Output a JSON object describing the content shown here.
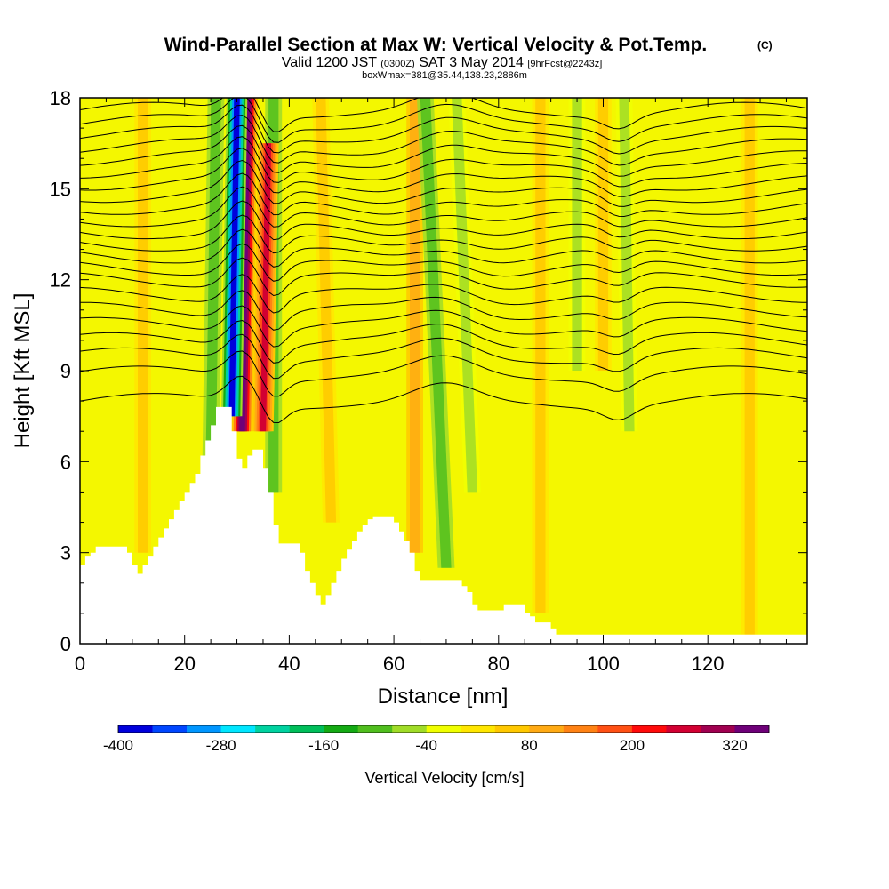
{
  "chart_data": {
    "type": "heatmap",
    "title": "Wind-Parallel Section at Max W: Vertical Velocity & Pot.Temp.",
    "copyright": "(C)",
    "subtitle_valid": "Valid 1200 JST",
    "subtitle_utc": "(0300Z)",
    "subtitle_date": "SAT 3 May 2014",
    "subtitle_fcst": "[9hrFcst@2243z]",
    "subtitle_box": "boxWmax=381@35.44,138.23,2886m",
    "xlabel": "Distance [nm]",
    "ylabel": "Height [Kft MSL]",
    "xlim": [
      0,
      139
    ],
    "ylim": [
      0,
      18
    ],
    "x_ticks": [
      0,
      20,
      40,
      60,
      80,
      100,
      120
    ],
    "y_ticks": [
      0,
      3,
      6,
      9,
      12,
      15,
      18
    ],
    "colorbar": {
      "label": "Vertical Velocity [cm/s]",
      "tick_values": [
        -400,
        -280,
        -160,
        -40,
        80,
        200,
        320
      ],
      "tick_labels": [
        "-400",
        "-280",
        "-160",
        "-40",
        "80",
        "200",
        "320"
      ],
      "bins": [
        -400,
        -360,
        -320,
        -280,
        -240,
        -200,
        -160,
        -120,
        -80,
        -40,
        0,
        40,
        80,
        120,
        160,
        200,
        240,
        280,
        320,
        360
      ],
      "colors": [
        "#0000dc",
        "#0046ff",
        "#0096ff",
        "#00e6ff",
        "#00d2a0",
        "#00be5a",
        "#14aa14",
        "#50be1e",
        "#a0dc28",
        "#f0ff00",
        "#ffe600",
        "#ffc800",
        "#ffaa14",
        "#ff8214",
        "#ff5014",
        "#ff0a0a",
        "#d20032",
        "#a00050",
        "#6e0078"
      ]
    },
    "terrain_profile": {
      "x": [
        0,
        1,
        2,
        3,
        4,
        5,
        6,
        7,
        8,
        9,
        10,
        11,
        12,
        13,
        14,
        15,
        16,
        17,
        18,
        19,
        20,
        21,
        22,
        23,
        24,
        25,
        26,
        27,
        28,
        29,
        30,
        31,
        32,
        33,
        34,
        35,
        36,
        37,
        38,
        39,
        40,
        41,
        42,
        43,
        44,
        45,
        46,
        47,
        48,
        49,
        50,
        51,
        52,
        53,
        54,
        55,
        56,
        57,
        58,
        59,
        60,
        61,
        62,
        63,
        64,
        65,
        66,
        67,
        68,
        69,
        70,
        71,
        72,
        73,
        74,
        75,
        76,
        77,
        78,
        79,
        80,
        81,
        82,
        83,
        84,
        85,
        86,
        87,
        88,
        89,
        90,
        91,
        92,
        93,
        94,
        95,
        139
      ],
      "height": [
        2.6,
        2.9,
        3.0,
        3.2,
        3.2,
        3.2,
        3.2,
        3.2,
        3.2,
        3.0,
        2.6,
        2.3,
        2.6,
        2.9,
        3.2,
        3.5,
        3.8,
        4.1,
        4.4,
        4.7,
        5.0,
        5.3,
        5.6,
        6.2,
        6.7,
        7.2,
        7.8,
        7.8,
        7.8,
        7.0,
        6.1,
        5.8,
        6.2,
        6.4,
        6.4,
        5.8,
        5.0,
        3.9,
        3.3,
        3.3,
        3.3,
        3.3,
        3.0,
        2.4,
        2.0,
        1.6,
        1.3,
        1.6,
        2.0,
        2.4,
        2.8,
        3.1,
        3.4,
        3.7,
        3.9,
        4.1,
        4.2,
        4.2,
        4.2,
        4.2,
        4.0,
        3.7,
        3.4,
        3.0,
        2.4,
        2.1,
        2.1,
        2.1,
        2.1,
        2.1,
        2.1,
        2.1,
        2.1,
        1.9,
        1.7,
        1.3,
        1.1,
        1.1,
        1.1,
        1.1,
        1.1,
        1.3,
        1.3,
        1.3,
        1.3,
        1.0,
        0.9,
        0.7,
        0.7,
        0.7,
        0.5,
        0.3,
        0.3,
        0.3,
        0.3,
        0.3,
        0.3
      ]
    },
    "vertical_velocity_features": [
      {
        "x": 29,
        "x_top": 30,
        "y_bottom": 7.5,
        "y_top": 18,
        "w_cms": -400
      },
      {
        "x": 31,
        "x_top": 32,
        "y_bottom": 7.0,
        "y_top": 18,
        "w_cms": 381
      },
      {
        "x": 35,
        "x_top": 36,
        "y_bottom": 7.0,
        "y_top": 16.5,
        "w_cms": 240
      },
      {
        "x": 25,
        "x_top": 26,
        "y_bottom": 6.0,
        "y_top": 18,
        "w_cms": -100
      },
      {
        "x": 37,
        "x_top": 37,
        "y_bottom": 5.0,
        "y_top": 18,
        "w_cms": -100
      },
      {
        "x": 70,
        "x_top": 66,
        "y_bottom": 2.5,
        "y_top": 18,
        "w_cms": -120
      },
      {
        "x": 64,
        "x_top": 64,
        "y_bottom": 3.0,
        "y_top": 18,
        "w_cms": 100
      },
      {
        "x": 75,
        "x_top": 72,
        "y_bottom": 5.0,
        "y_top": 18,
        "w_cms": -60
      },
      {
        "x": 95,
        "x_top": 95,
        "y_bottom": 9.0,
        "y_top": 18,
        "w_cms": -60
      },
      {
        "x": 105,
        "x_top": 104,
        "y_bottom": 7.0,
        "y_top": 18,
        "w_cms": -80
      },
      {
        "x": 100,
        "x_top": 100,
        "y_bottom": 9.0,
        "y_top": 18,
        "w_cms": 60
      },
      {
        "x": 12,
        "x_top": 12,
        "y_bottom": 3.0,
        "y_top": 18,
        "w_cms": 60
      },
      {
        "x": 48,
        "x_top": 46,
        "y_bottom": 4.0,
        "y_top": 18,
        "w_cms": 50
      },
      {
        "x": 88,
        "x_top": 88,
        "y_bottom": 1.0,
        "y_top": 18,
        "w_cms": 40
      },
      {
        "x": 128,
        "x_top": 128,
        "y_bottom": 0.3,
        "y_top": 18,
        "w_cms": 40
      }
    ],
    "isentropes": {
      "label": "Pot.Temp.",
      "base_heights": [
        8.0,
        8.9,
        9.5,
        10.0,
        10.5,
        11.0,
        11.5,
        12.0,
        12.4,
        12.8,
        13.2,
        13.6,
        14.0,
        14.4,
        14.8,
        15.2,
        15.6,
        16.0,
        16.4,
        16.8,
        17.2,
        17.6
      ]
    }
  }
}
